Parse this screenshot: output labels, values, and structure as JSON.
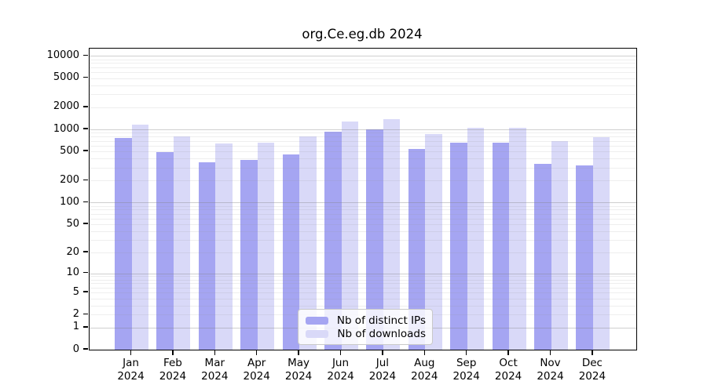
{
  "chart_data": {
    "type": "bar",
    "title": "org.Ce.eg.db 2024",
    "year_label": "2024",
    "categories": [
      "Jan",
      "Feb",
      "Mar",
      "Apr",
      "May",
      "Jun",
      "Jul",
      "Aug",
      "Sep",
      "Oct",
      "Nov",
      "Dec"
    ],
    "series": [
      {
        "name": "Nb of distinct IPs",
        "color": "#a5a5f2",
        "values": [
          770,
          485,
          355,
          380,
          450,
          925,
          1000,
          540,
          655,
          655,
          340,
          320
        ]
      },
      {
        "name": "Nb of downloads",
        "color": "#d9d9f8",
        "values": [
          1170,
          795,
          650,
          665,
          805,
          1270,
          1370,
          855,
          1045,
          1060,
          695,
          785
        ]
      }
    ],
    "y_axis": {
      "scale": "log10(value+1)",
      "total_decades": 4.1,
      "tick_labels": [
        "10000",
        "5000",
        "2000",
        "1000",
        "500",
        "200",
        "100",
        "50",
        "20",
        "10",
        "5",
        "2",
        "1",
        "0"
      ],
      "tick_values": [
        10000,
        5000,
        2000,
        1000,
        500,
        200,
        100,
        50,
        20,
        10,
        5,
        2,
        1,
        0
      ],
      "major_gridline_values": [
        1,
        10,
        100,
        1000,
        10000
      ]
    },
    "grid": true,
    "legend_position": "inside-bottom-center",
    "colors": {
      "axis": "#000000",
      "major_grid": "#c8c8c8",
      "minor_grid": "#ececec",
      "background": "#ffffff"
    }
  }
}
